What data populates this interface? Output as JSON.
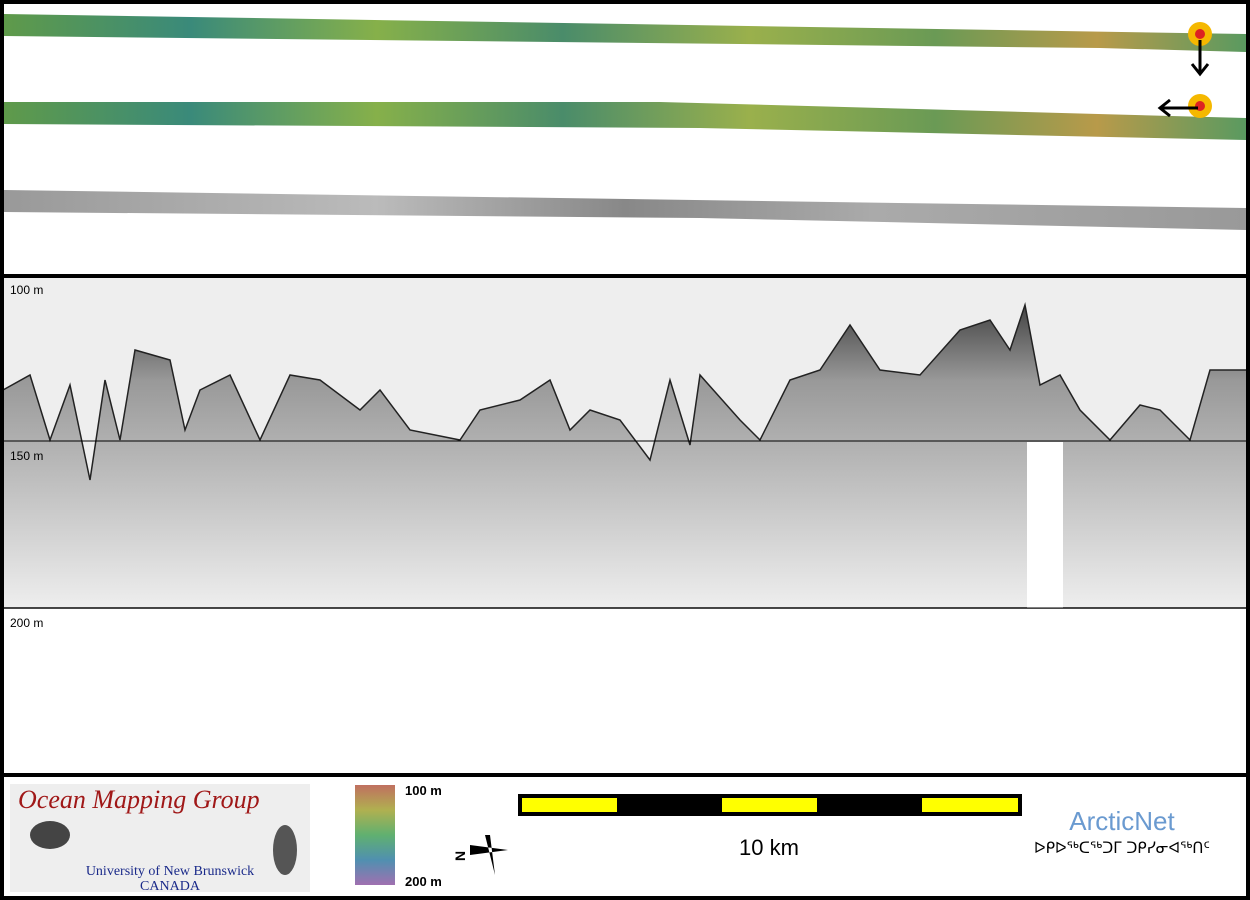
{
  "profile_panel": {
    "depth_labels": [
      "100 m",
      "150 m",
      "200 m"
    ]
  },
  "logo": {
    "title": "Ocean Mapping Group",
    "university": "University of New Brunswick",
    "country": "CANADA"
  },
  "colorbar": {
    "top_label": "100 m",
    "bottom_label": "200 m"
  },
  "compass": {
    "label": "N"
  },
  "scale_bar": {
    "label": "10 km"
  },
  "arcticnet": {
    "name": "ArcticNet",
    "inuktitut": "ᐅᑭᐅᖅᑕᖅᑐᒥ ᑐᑭᓯᓂᐊᖅᑎᑦ"
  }
}
